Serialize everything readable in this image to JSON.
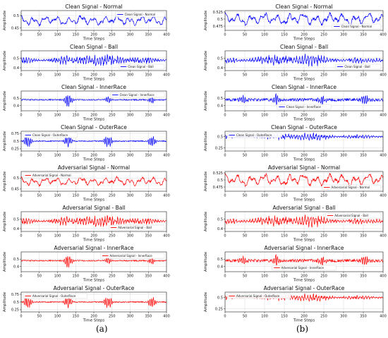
{
  "figure": {
    "panel_labels": [
      "(a)",
      "(b)"
    ]
  },
  "chart_data": [
    {
      "type": "line",
      "panel": "(a)",
      "title": "Clean Signal - Normal",
      "xlabel": "Time Steps",
      "ylabel": "Amplitude",
      "legend": "Clean Signal - Normal",
      "legend_position": "top-right",
      "color": "#0000ff",
      "xlim": [
        0,
        400
      ],
      "xticks": [
        0,
        50,
        100,
        150,
        200,
        250,
        300,
        350,
        400
      ],
      "ylim": [
        0.44,
        0.52
      ],
      "yticks": [
        0.45,
        0.5
      ],
      "grid": true,
      "seed": 11,
      "base": 0.48,
      "amp": 0.018,
      "mode": "smooth",
      "bursts": []
    },
    {
      "type": "line",
      "panel": "(a)",
      "title": "Clean Signal - Ball",
      "xlabel": "Time Steps",
      "ylabel": "Amplitude",
      "legend": "Clean Signal - Ball",
      "legend_position": "bottom-right",
      "color": "#0000ff",
      "xlim": [
        0,
        400
      ],
      "xticks": [
        0,
        50,
        100,
        150,
        200,
        250,
        300,
        350,
        400
      ],
      "ylim": [
        0.37,
        0.58
      ],
      "yticks": [
        0.4,
        0.5
      ],
      "grid": true,
      "seed": 23,
      "base": 0.48,
      "amp": 0.045,
      "mode": "dense",
      "bursts": []
    },
    {
      "type": "line",
      "panel": "(a)",
      "title": "Clean Signal - InnerRace",
      "xlabel": "Time Steps",
      "ylabel": "Amplitude",
      "legend": "Clean Signal - InnerRace",
      "legend_position": "top-right",
      "color": "#0000ff",
      "xlim": [
        0,
        400
      ],
      "xticks": [
        0,
        50,
        100,
        150,
        200,
        250,
        300,
        350,
        400
      ],
      "ylim": [
        0.33,
        0.6
      ],
      "yticks": [
        0.4,
        0.5
      ],
      "grid": true,
      "seed": 37,
      "base": 0.48,
      "amp": 0.01,
      "mode": "bursts",
      "bursts": [
        [
          130,
          14,
          0.09
        ],
        [
          240,
          12,
          0.05
        ],
        [
          360,
          12,
          0.05
        ]
      ]
    },
    {
      "type": "line",
      "panel": "(a)",
      "title": "Clean Signal - OuterRace",
      "xlabel": "Time Steps",
      "ylabel": "Amplitude",
      "legend": "Clean Signal - OuterRace",
      "legend_position": "top-left",
      "color": "#0000ff",
      "xlim": [
        0,
        400
      ],
      "xticks": [
        0,
        50,
        100,
        150,
        200,
        250,
        300,
        350,
        400
      ],
      "ylim": [
        0.18,
        0.82
      ],
      "yticks": [
        0.25,
        0.5,
        0.75
      ],
      "grid": true,
      "seed": 41,
      "base": 0.5,
      "amp": 0.02,
      "mode": "bursts",
      "bursts": [
        [
          18,
          14,
          0.22
        ],
        [
          130,
          14,
          0.2
        ],
        [
          240,
          14,
          0.22
        ],
        [
          360,
          14,
          0.22
        ]
      ]
    },
    {
      "type": "line",
      "panel": "(a)",
      "title": "Adversarial Signal - Normal",
      "xlabel": "Time Steps",
      "ylabel": "Amplitude",
      "legend": "Adversarial Signal - Normal",
      "legend_position": "top-left",
      "color": "#ff0000",
      "xlim": [
        0,
        400
      ],
      "xticks": [
        0,
        50,
        100,
        150,
        200,
        250,
        300,
        350,
        400
      ],
      "ylim": [
        0.44,
        0.53
      ],
      "yticks": [
        0.45,
        0.5
      ],
      "grid": true,
      "seed": 11,
      "base": 0.485,
      "amp": 0.018,
      "mode": "smooth",
      "bursts": []
    },
    {
      "type": "line",
      "panel": "(a)",
      "title": "Adversarial Signal - Ball",
      "xlabel": "Time Steps",
      "ylabel": "Amplitude",
      "legend": "Adversarial Signal - Ball",
      "legend_position": "bottom-right",
      "color": "#ff0000",
      "xlim": [
        0,
        400
      ],
      "xticks": [
        0,
        50,
        100,
        150,
        200,
        250,
        300,
        350,
        400
      ],
      "ylim": [
        0.37,
        0.58
      ],
      "yticks": [
        0.4,
        0.5
      ],
      "grid": true,
      "seed": 23,
      "base": 0.48,
      "amp": 0.045,
      "mode": "dense",
      "bursts": []
    },
    {
      "type": "line",
      "panel": "(a)",
      "title": "Adversarial Signal - InnerRace",
      "xlabel": "Time Steps",
      "ylabel": "Amplitude",
      "legend": "Adversarial Signal - InnerRace",
      "legend_position": "top-right",
      "color": "#ff0000",
      "xlim": [
        0,
        400
      ],
      "xticks": [
        0,
        50,
        100,
        150,
        200,
        250,
        300,
        350,
        400
      ],
      "ylim": [
        0.33,
        0.6
      ],
      "yticks": [
        0.4,
        0.5
      ],
      "grid": true,
      "seed": 37,
      "base": 0.48,
      "amp": 0.01,
      "mode": "bursts",
      "bursts": [
        [
          130,
          14,
          0.09
        ],
        [
          240,
          12,
          0.05
        ],
        [
          360,
          12,
          0.05
        ]
      ]
    },
    {
      "type": "line",
      "panel": "(a)",
      "title": "Adversarial Signal - OuterRace",
      "xlabel": "Time Steps",
      "ylabel": "Amplitude",
      "legend": "Adversarial Signal - OuterRace",
      "legend_position": "top-left",
      "color": "#ff0000",
      "xlim": [
        0,
        400
      ],
      "xticks": [
        0,
        50,
        100,
        150,
        200,
        250,
        300,
        350,
        400
      ],
      "ylim": [
        0.18,
        0.82
      ],
      "yticks": [
        0.25,
        0.5,
        0.75
      ],
      "grid": true,
      "seed": 41,
      "base": 0.5,
      "amp": 0.02,
      "mode": "bursts",
      "bursts": [
        [
          18,
          14,
          0.22
        ],
        [
          130,
          14,
          0.2
        ],
        [
          240,
          14,
          0.22
        ],
        [
          360,
          14,
          0.22
        ]
      ]
    },
    {
      "type": "line",
      "panel": "(b)",
      "title": "Clean Signal - Normal",
      "xlabel": "Time Steps",
      "ylabel": "Amplitude",
      "legend": "Clean Signal - Normal",
      "legend_position": "bottom-right",
      "color": "#0000ff",
      "xlim": [
        0,
        400
      ],
      "xticks": [
        0,
        50,
        100,
        150,
        200,
        250,
        300,
        350,
        400
      ],
      "ylim": [
        0.46,
        0.53
      ],
      "yticks": [
        0.475,
        0.5,
        0.525
      ],
      "grid": true,
      "seed": 53,
      "base": 0.5,
      "amp": 0.02,
      "mode": "smooth",
      "bursts": []
    },
    {
      "type": "line",
      "panel": "(b)",
      "title": "Clean Signal - Ball",
      "xlabel": "Time Steps",
      "ylabel": "Amplitude",
      "legend": "Clean Signal - Ball",
      "legend_position": "bottom-right",
      "color": "#0000ff",
      "xlim": [
        0,
        400
      ],
      "xticks": [
        0,
        50,
        100,
        150,
        200,
        250,
        300,
        350,
        400
      ],
      "ylim": [
        0.37,
        0.58
      ],
      "yticks": [
        0.4,
        0.5
      ],
      "grid": true,
      "seed": 67,
      "base": 0.48,
      "amp": 0.045,
      "mode": "dense",
      "bursts": []
    },
    {
      "type": "line",
      "panel": "(b)",
      "title": "Clean Signal - InnerRace",
      "xlabel": "Time Steps",
      "ylabel": "Amplitude",
      "legend": "Clean Signal - InnerRace",
      "legend_position": "bottom-center",
      "color": "#0000ff",
      "xlim": [
        0,
        400
      ],
      "xticks": [
        0,
        50,
        100,
        150,
        200,
        250,
        300,
        350,
        400
      ],
      "ylim": [
        0.33,
        0.6
      ],
      "yticks": [
        0.4,
        0.5
      ],
      "grid": true,
      "seed": 71,
      "base": 0.48,
      "amp": 0.025,
      "mode": "bursts",
      "bursts": [
        [
          45,
          14,
          0.06
        ],
        [
          130,
          14,
          0.08
        ],
        [
          245,
          14,
          0.06
        ],
        [
          355,
          14,
          0.07
        ]
      ]
    },
    {
      "type": "line",
      "panel": "(b)",
      "title": "Clean Signal - OuterRace",
      "xlabel": "Time Steps",
      "ylabel": "Amplitude",
      "legend": "Clean Signal - OuterRace",
      "legend_position": "top-left",
      "color": "#0000ff",
      "xlim": [
        0,
        400
      ],
      "xticks": [
        0,
        50,
        100,
        150,
        200,
        250,
        300,
        350,
        400
      ],
      "ylim": [
        0.18,
        0.62
      ],
      "yticks": [
        0.25,
        0.5
      ],
      "grid": true,
      "seed": 83,
      "base": 0.5,
      "amp": 0.06,
      "mode": "dense",
      "bursts": []
    },
    {
      "type": "line",
      "panel": "(b)",
      "title": "Adversarial Signal - Normal",
      "xlabel": "Time Steps",
      "ylabel": "Amplitude",
      "legend": "Adversarial Signal - Normal",
      "legend_position": "bottom-right",
      "color": "#ff0000",
      "xlim": [
        0,
        400
      ],
      "xticks": [
        0,
        50,
        100,
        150,
        200,
        250,
        300,
        350,
        400
      ],
      "ylim": [
        0.46,
        0.53
      ],
      "yticks": [
        0.475,
        0.5,
        0.525
      ],
      "grid": true,
      "seed": 53,
      "base": 0.5,
      "amp": 0.02,
      "mode": "smooth",
      "bursts": []
    },
    {
      "type": "line",
      "panel": "(b)",
      "title": "Adversarial Signal - Ball",
      "xlabel": "Time Steps",
      "ylabel": "Amplitude",
      "legend": "Adversarial Signal - Ball",
      "legend_position": "top-right",
      "color": "#ff0000",
      "xlim": [
        0,
        400
      ],
      "xticks": [
        0,
        50,
        100,
        150,
        200,
        250,
        300,
        350,
        400
      ],
      "ylim": [
        0.37,
        0.58
      ],
      "yticks": [
        0.4,
        0.5
      ],
      "grid": true,
      "seed": 67,
      "base": 0.48,
      "amp": 0.045,
      "mode": "dense",
      "bursts": []
    },
    {
      "type": "line",
      "panel": "(b)",
      "title": "Adversarial Signal - InnerRace",
      "xlabel": "Time Steps",
      "ylabel": "Amplitude",
      "legend": "Adversarial Signal - InnerRace",
      "legend_position": "bottom-center",
      "color": "#ff0000",
      "xlim": [
        0,
        400
      ],
      "xticks": [
        0,
        50,
        100,
        150,
        200,
        250,
        300,
        350,
        400
      ],
      "ylim": [
        0.33,
        0.6
      ],
      "yticks": [
        0.4,
        0.5
      ],
      "grid": true,
      "seed": 71,
      "base": 0.48,
      "amp": 0.025,
      "mode": "bursts",
      "bursts": [
        [
          45,
          14,
          0.06
        ],
        [
          130,
          14,
          0.08
        ],
        [
          245,
          14,
          0.06
        ],
        [
          355,
          14,
          0.07
        ]
      ]
    },
    {
      "type": "line",
      "panel": "(b)",
      "title": "Adversarial Signal - OuterRace",
      "xlabel": "Time Steps",
      "ylabel": "Amplitude",
      "legend": "Adversarial Signal - OuterRace",
      "legend_position": "top-left",
      "color": "#ff0000",
      "xlim": [
        0,
        400
      ],
      "xticks": [
        0,
        50,
        100,
        150,
        200,
        250,
        300,
        350,
        400
      ],
      "ylim": [
        0.18,
        0.62
      ],
      "yticks": [
        0.25,
        0.5
      ],
      "grid": true,
      "seed": 83,
      "base": 0.5,
      "amp": 0.06,
      "mode": "dense",
      "bursts": []
    }
  ]
}
